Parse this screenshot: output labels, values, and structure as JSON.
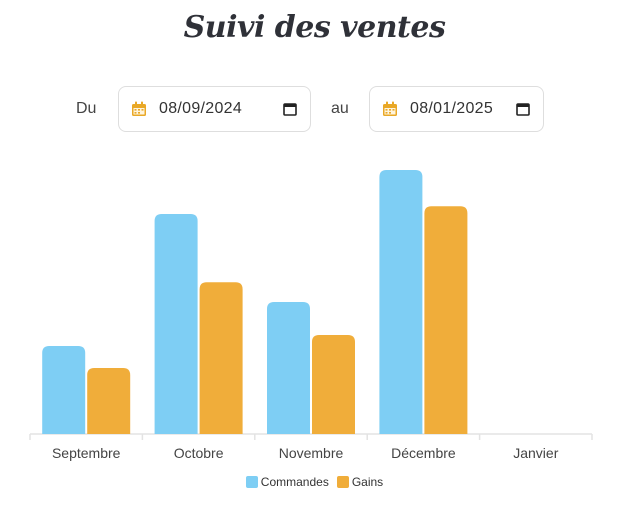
{
  "header": {
    "title": "Suivi des ventes"
  },
  "filters": {
    "from_label": "Du",
    "from_date": "08/09/2024",
    "to_label": "au",
    "to_date": "08/01/2025",
    "calendar_icon": "calendar-icon",
    "picker_icon": "calendar-picker-icon",
    "icon_color": "#e9a826"
  },
  "chart_data": {
    "type": "bar",
    "categories": [
      "Septembre",
      "Octobre",
      "Novembre",
      "Décembre",
      "Janvier"
    ],
    "series": [
      {
        "name": "Commandes",
        "values": [
          4,
          10,
          6,
          12,
          0
        ],
        "color": "#7ecef4"
      },
      {
        "name": "Gains",
        "values": [
          3,
          6.9,
          4.5,
          10.35,
          0
        ],
        "color": "#f0ad3a"
      }
    ],
    "ylim": [
      0,
      12
    ],
    "title": "",
    "xlabel": "",
    "ylabel": "",
    "grid": false,
    "legend_position": "bottom"
  }
}
